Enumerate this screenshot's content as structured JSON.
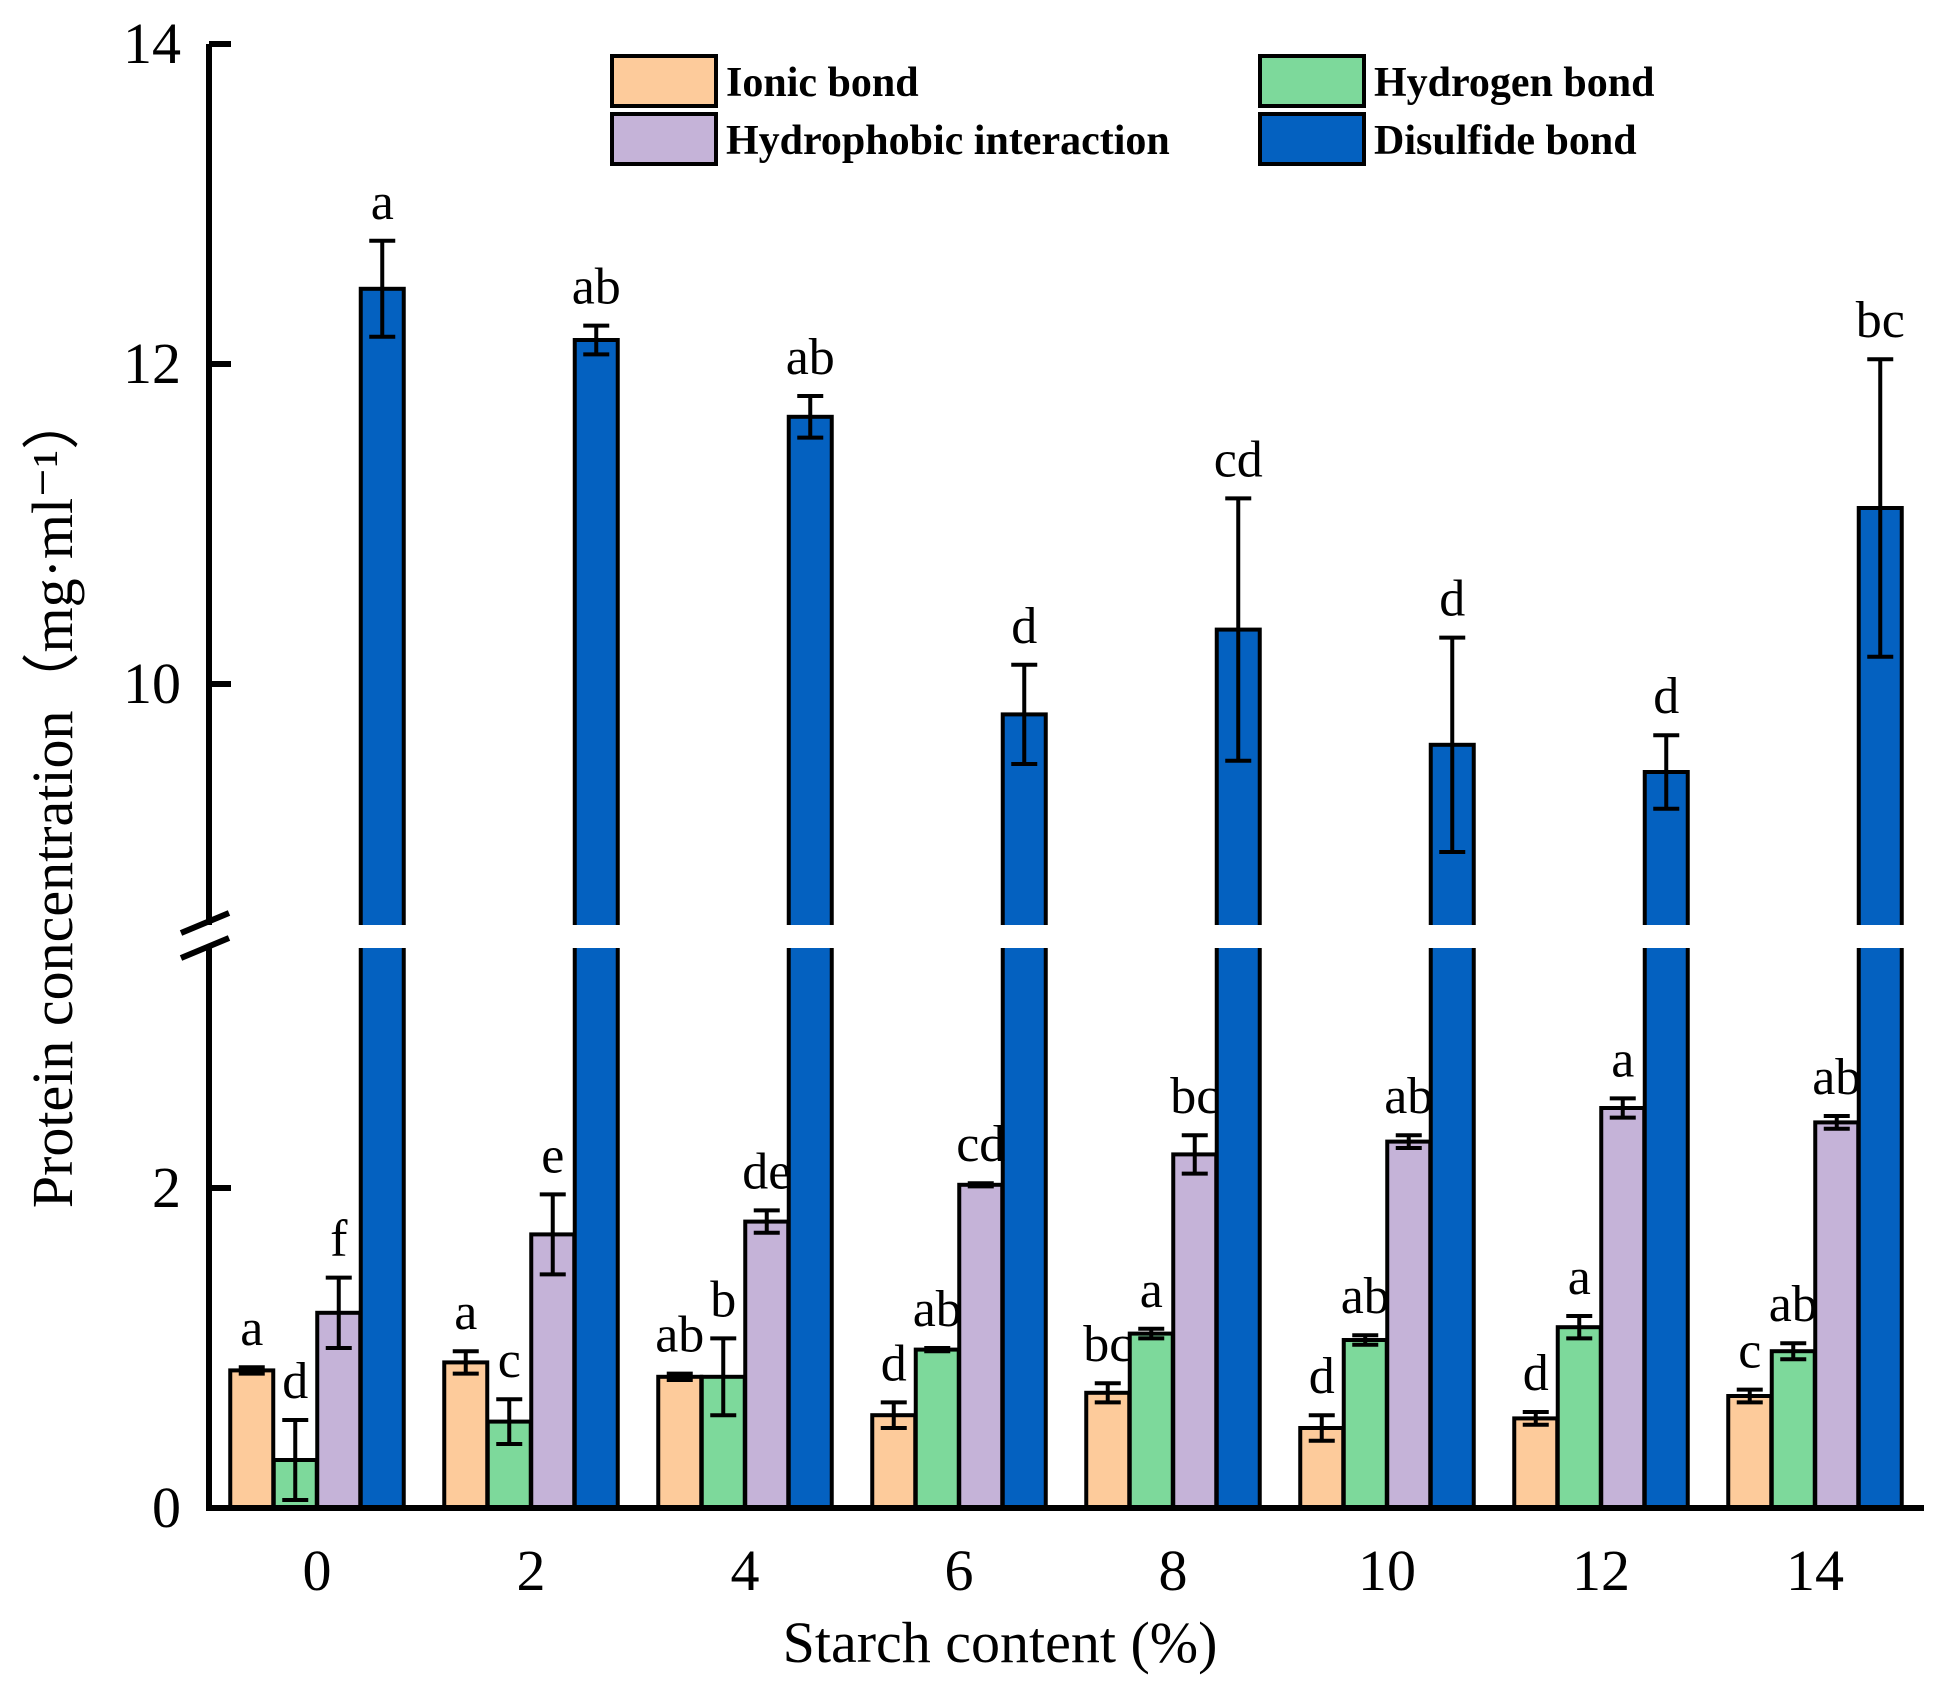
{
  "chart_data": {
    "type": "bar",
    "xlabel": "Starch content (%)",
    "ylabel": "Protein concentration（mg·ml⁻¹）",
    "categories": [
      "0",
      "2",
      "4",
      "6",
      "8",
      "10",
      "12",
      "14"
    ],
    "y_axis_broken": true,
    "y_segments": [
      {
        "range": [
          0,
          3.05
        ],
        "ticks": [
          0,
          2
        ]
      },
      {
        "range": [
          8.5,
          14
        ],
        "ticks": [
          10,
          12,
          14
        ]
      }
    ],
    "legend_placement": "top",
    "grid": false,
    "series": [
      {
        "name": "Ionic bond",
        "color": "#FDCB9B",
        "values": [
          0.86,
          0.91,
          0.82,
          0.58,
          0.72,
          0.5,
          0.56,
          0.7
        ],
        "errors": [
          0.02,
          0.07,
          0.02,
          0.08,
          0.06,
          0.08,
          0.04,
          0.04
        ],
        "labels": [
          "a",
          "a",
          "ab",
          "d",
          "bc",
          "d",
          "d",
          "c"
        ]
      },
      {
        "name": "Hydrogen bond",
        "color": "#7DD99B",
        "values": [
          0.3,
          0.54,
          0.82,
          0.99,
          1.09,
          1.05,
          1.13,
          0.98
        ],
        "errors": [
          0.25,
          0.14,
          0.24,
          0.01,
          0.03,
          0.03,
          0.07,
          0.05
        ],
        "labels": [
          "d",
          "c",
          "b",
          "ab",
          "a",
          "ab",
          "a",
          "ab"
        ]
      },
      {
        "name": "Hydrophobic interaction",
        "color": "#C5B3D8",
        "values": [
          1.22,
          1.71,
          1.79,
          2.02,
          2.21,
          2.29,
          2.5,
          2.41
        ],
        "errors": [
          0.22,
          0.25,
          0.07,
          0.01,
          0.12,
          0.04,
          0.06,
          0.04
        ],
        "labels": [
          "f",
          "e",
          "de",
          "cd",
          "bc",
          "ab",
          "a",
          "ab"
        ]
      },
      {
        "name": "Disulfide bond",
        "color": "#0461C0",
        "values": [
          12.47,
          12.15,
          11.67,
          9.81,
          10.34,
          9.62,
          9.45,
          11.1
        ],
        "errors": [
          0.3,
          0.09,
          0.13,
          0.31,
          0.82,
          0.67,
          0.23,
          0.93
        ],
        "labels": [
          "a",
          "ab",
          "ab",
          "d",
          "cd",
          "d",
          "d",
          "bc"
        ]
      }
    ]
  }
}
